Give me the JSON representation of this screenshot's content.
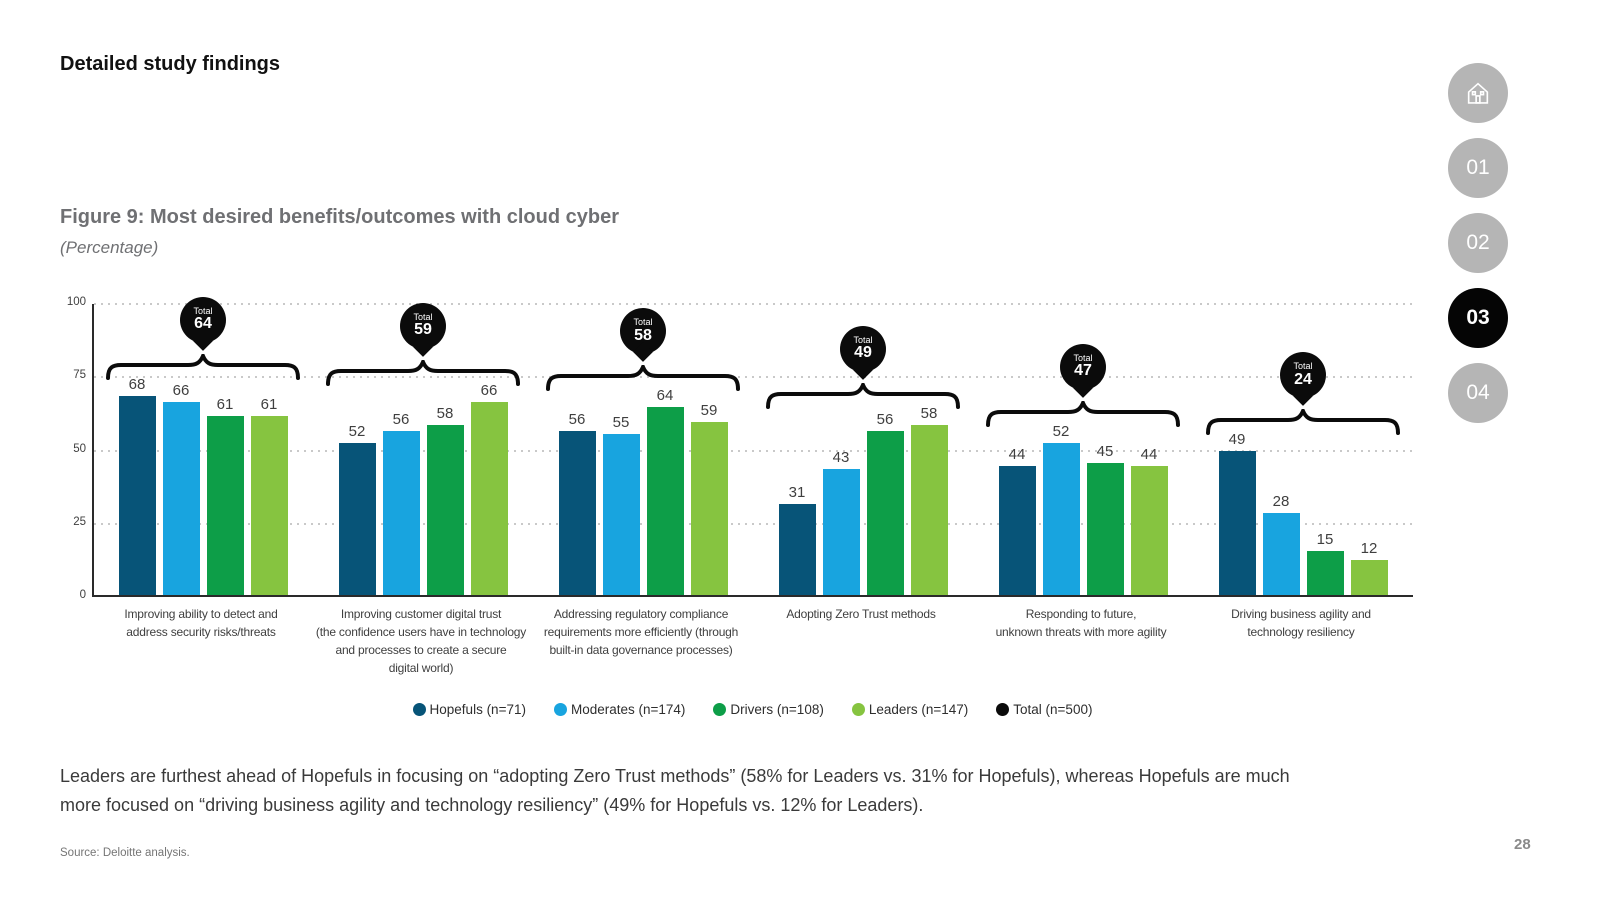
{
  "page": {
    "heading": "Detailed study findings",
    "body_text": "Leaders are furthest ahead of Hopefuls in focusing on “adopting Zero Trust methods” (58% for Leaders vs. 31% for Hopefuls), whereas Hopefuls are much\nmore focused on “driving business agility and technology resiliency” (49% for Hopefuls vs. 12% for Leaders).",
    "source": "Source: Deloitte analysis.",
    "page_number": "28"
  },
  "figure": {
    "title": "Figure 9: Most desired benefits/outcomes with cloud cyber",
    "subtitle": "(Percentage)"
  },
  "nav": {
    "home_icon": "home-icon",
    "circle_color": "#b5b5b5",
    "active_color": "#050505",
    "items": [
      {
        "label": "01",
        "active": false
      },
      {
        "label": "02",
        "active": false
      },
      {
        "label": "03",
        "active": true
      },
      {
        "label": "04",
        "active": false
      }
    ]
  },
  "chart_data": {
    "type": "bar",
    "title": "Figure 9: Most desired benefits/outcomes with cloud cyber",
    "unit": "percentage",
    "ylim": [
      0,
      100
    ],
    "yticks": [
      0,
      25,
      50,
      75,
      100
    ],
    "grid": "dotted-horizontal",
    "legend_position": "bottom",
    "categories": [
      "Improving ability to detect and\naddress security risks/threats",
      "Improving customer digital trust\n(the confidence users have in technology\nand processes to create a secure\ndigital world)",
      "Addressing regulatory compliance\nrequirements more efficiently (through\nbuilt-in data governance processes)",
      "Adopting Zero Trust methods",
      "Responding to future,\nunknown threats with more agility",
      "Driving business agility and\ntechnology resiliency"
    ],
    "series": [
      {
        "name": "Hopefuls (n=71)",
        "color": "#075478",
        "values": [
          68,
          52,
          56,
          31,
          44,
          49
        ]
      },
      {
        "name": "Moderates (n=174)",
        "color": "#18a4df",
        "values": [
          66,
          56,
          55,
          43,
          52,
          28
        ]
      },
      {
        "name": "Drivers (n=108)",
        "color": "#0d9e48",
        "values": [
          61,
          58,
          64,
          56,
          45,
          15
        ]
      },
      {
        "name": "Leaders (n=147)",
        "color": "#86c440",
        "values": [
          61,
          66,
          59,
          58,
          44,
          12
        ]
      }
    ],
    "totals": {
      "name": "Total  (n=500)",
      "color": "#0b0b0b",
      "values": [
        64,
        59,
        58,
        49,
        47,
        24
      ]
    },
    "total_bubble_label": "Total"
  }
}
